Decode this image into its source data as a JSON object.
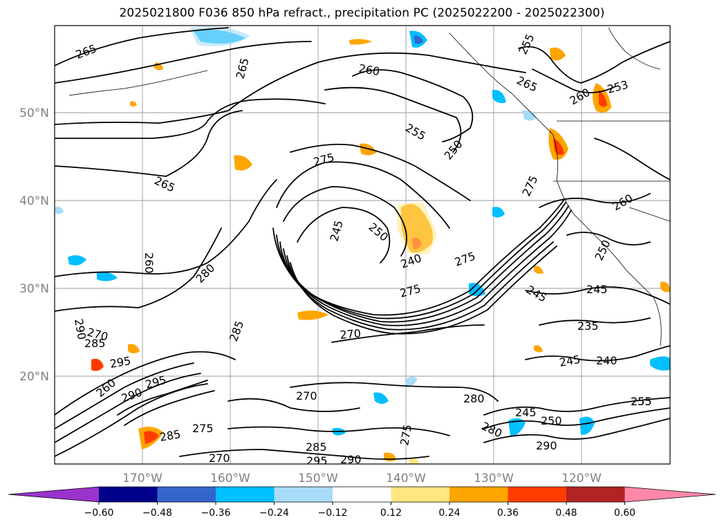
{
  "title": "2025021800 F036 850 hPa refract., precipitation PC (2025022200 - 2025022300)",
  "lat_labels": [
    "50°N",
    "40°N",
    "30°N",
    "20°N"
  ],
  "lon_labels": [
    "170°W",
    "160°W",
    "150°W",
    "140°W",
    "130°W",
    "120°W"
  ],
  "contour_labels": [
    "265",
    "260",
    "265",
    "255",
    "250",
    "265",
    "275",
    "245",
    "250",
    "240",
    "255",
    "265",
    "260",
    "253",
    "275",
    "260",
    "250",
    "245",
    "245",
    "235",
    "240",
    "245",
    "255",
    "280",
    "270",
    "270",
    "280",
    "285",
    "290",
    "270",
    "285",
    "295",
    "290",
    "295",
    "275",
    "285",
    "295",
    "290",
    "260",
    "275",
    "250",
    "245",
    "255",
    "290",
    "285",
    "280",
    "275",
    "260",
    "270",
    "275"
  ],
  "colorbar": {
    "tick_labels": [
      "−0.60",
      "−0.48",
      "−0.36",
      "−0.24",
      "−0.12",
      "0.12",
      "0.24",
      "0.36",
      "0.48",
      "0.60"
    ],
    "colors": [
      "#9933cc",
      "#00008b",
      "#3366cc",
      "#00bfff",
      "#a8dcf8",
      "#ffffff",
      "#ffe680",
      "#ffa500",
      "#ff3c00",
      "#b22222",
      "#ff88aa"
    ]
  }
}
